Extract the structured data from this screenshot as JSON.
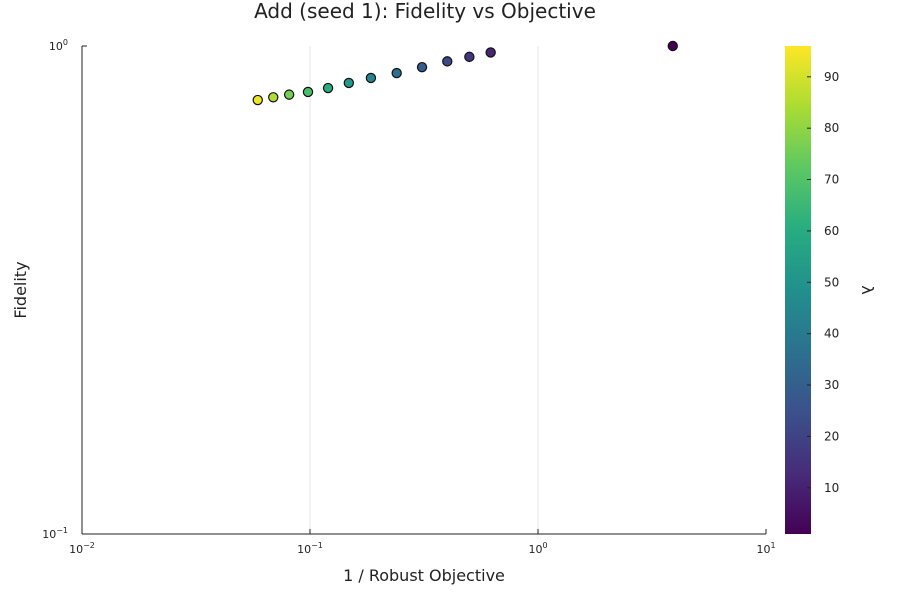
{
  "chart_data": {
    "type": "scatter",
    "title": "Add (seed 1): Fidelity vs Objective",
    "xlabel": "1 / Robust Objective",
    "ylabel": "Fidelity",
    "x_scale": "log",
    "y_scale": "log",
    "xlim": [
      0.01,
      10
    ],
    "ylim": [
      0.1,
      1
    ],
    "x_ticks": [
      {
        "value": 0.01,
        "base": "10",
        "exp": "−2"
      },
      {
        "value": 0.1,
        "base": "10",
        "exp": "−1"
      },
      {
        "value": 1,
        "base": "10",
        "exp": "0"
      },
      {
        "value": 10,
        "base": "10",
        "exp": "1"
      }
    ],
    "y_ticks": [
      {
        "value": 0.1,
        "base": "10",
        "exp": "−1"
      },
      {
        "value": 1,
        "base": "10",
        "exp": "0"
      }
    ],
    "grid": true,
    "colorbar": {
      "label": "λ",
      "colormap": "viridis",
      "range": [
        1,
        96
      ],
      "ticks": [
        "10",
        "20",
        "30",
        "40",
        "50",
        "60",
        "70",
        "80",
        "90"
      ]
    },
    "points": [
      {
        "x": 3.9,
        "y": 1.0,
        "c": 1
      },
      {
        "x": 0.62,
        "y": 0.97,
        "c": 11
      },
      {
        "x": 0.5,
        "y": 0.95,
        "c": 16
      },
      {
        "x": 0.4,
        "y": 0.93,
        "c": 22
      },
      {
        "x": 0.31,
        "y": 0.905,
        "c": 29
      },
      {
        "x": 0.24,
        "y": 0.88,
        "c": 36
      },
      {
        "x": 0.185,
        "y": 0.86,
        "c": 44
      },
      {
        "x": 0.148,
        "y": 0.84,
        "c": 52
      },
      {
        "x": 0.12,
        "y": 0.82,
        "c": 60
      },
      {
        "x": 0.098,
        "y": 0.805,
        "c": 68
      },
      {
        "x": 0.081,
        "y": 0.795,
        "c": 76
      },
      {
        "x": 0.069,
        "y": 0.785,
        "c": 85
      },
      {
        "x": 0.059,
        "y": 0.775,
        "c": 94
      }
    ]
  }
}
